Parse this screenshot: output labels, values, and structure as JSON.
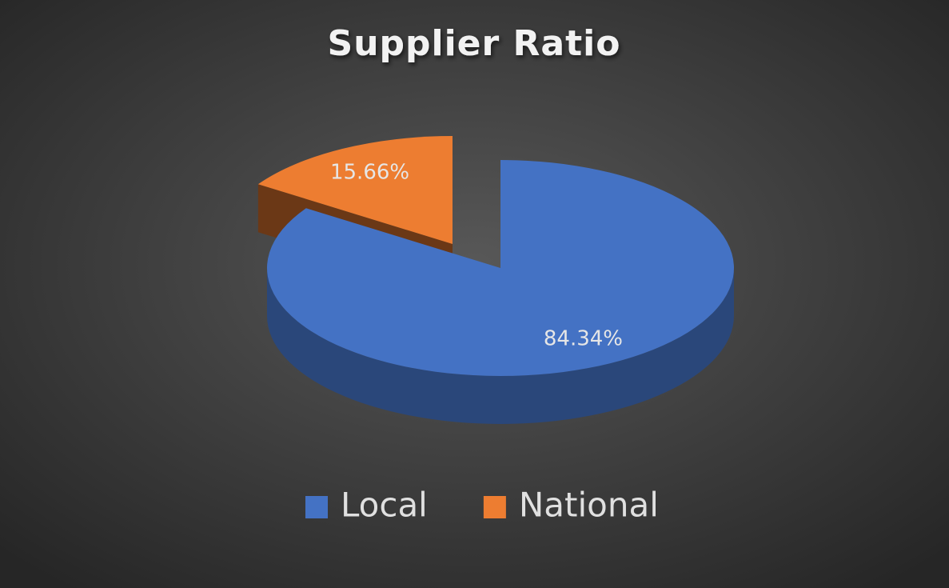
{
  "chart_data": {
    "type": "pie",
    "title": "Supplier Ratio",
    "categories": [
      "Local",
      "National"
    ],
    "values": [
      84.34,
      15.66
    ],
    "value_labels": [
      "84.34%",
      "15.66%"
    ],
    "colors": [
      "#4472c4",
      "#ed7d31"
    ],
    "legend": "bottom"
  }
}
